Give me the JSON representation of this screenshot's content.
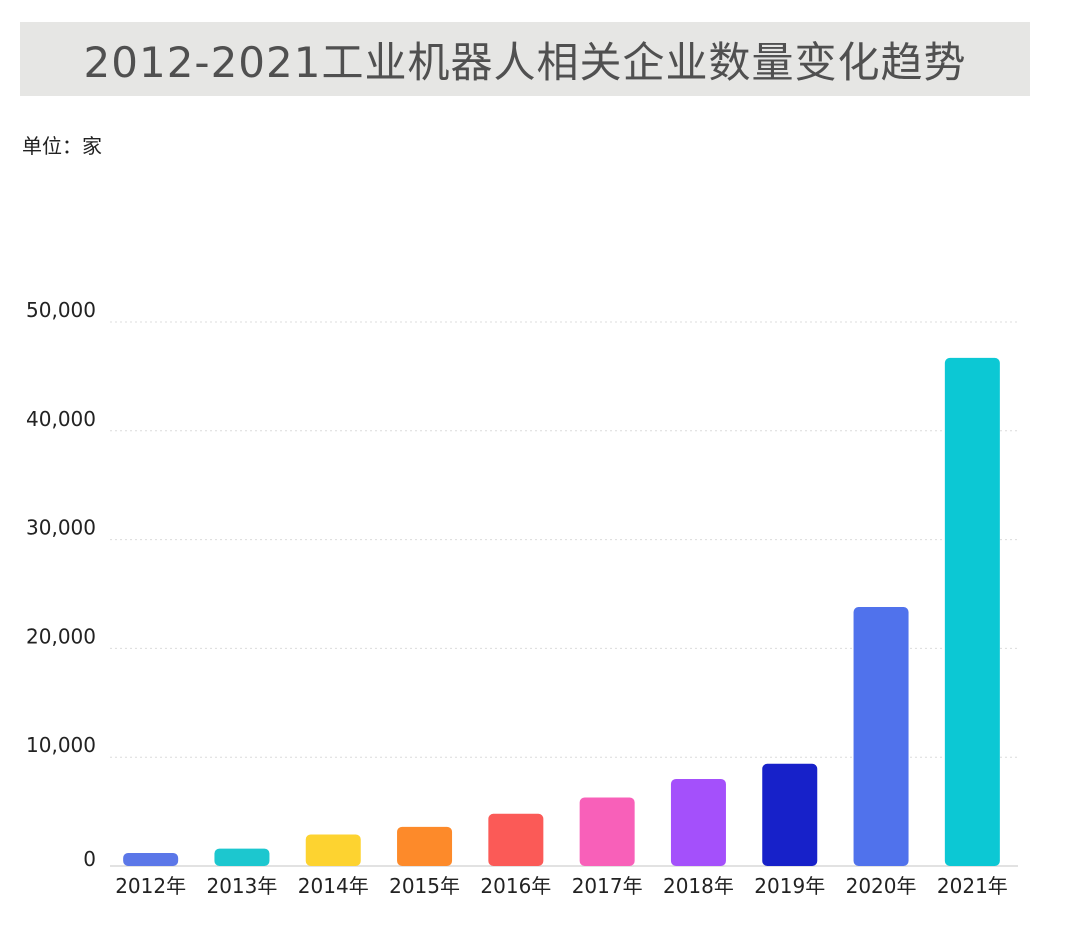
{
  "title": "2012-2021工业机器人相关企业数量变化趋势",
  "unit": "单位：家",
  "chart_data": {
    "type": "bar",
    "categories": [
      "2012年",
      "2013年",
      "2014年",
      "2015年",
      "2016年",
      "2017年",
      "2018年",
      "2019年",
      "2020年",
      "2021年"
    ],
    "values": [
      1200,
      1600,
      2900,
      3600,
      4800,
      6300,
      8000,
      9400,
      23800,
      46700
    ],
    "colors": [
      "#5b77e8",
      "#1cc7cf",
      "#fdd330",
      "#fd8a2a",
      "#fb5a57",
      "#f860b9",
      "#a450fb",
      "#1721c9",
      "#5072ec",
      "#0cc8d4"
    ],
    "ylim": [
      0,
      50000
    ],
    "yticks": [
      0,
      10000,
      20000,
      30000,
      40000,
      50000
    ],
    "ytick_labels": [
      "0",
      "10,000",
      "20,000",
      "30,000",
      "40,000",
      "50,000"
    ],
    "grid": true,
    "legend": "none"
  }
}
